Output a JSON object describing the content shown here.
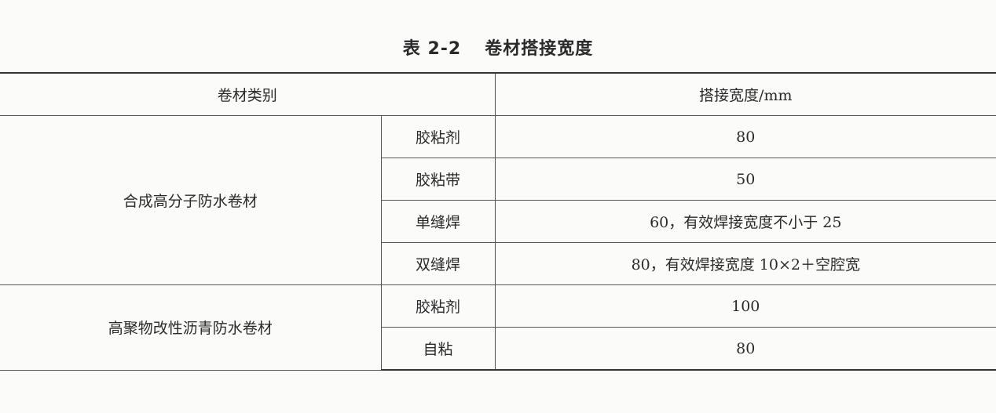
{
  "title": {
    "label": "表 2-2",
    "text": "卷材搭接宽度"
  },
  "table": {
    "headers": [
      "卷材类别",
      "搭接宽度/mm"
    ],
    "groups": [
      {
        "category": "合成高分子防水卷材",
        "rows": [
          {
            "method": "胶粘剂",
            "width": "80"
          },
          {
            "method": "胶粘带",
            "width": "50"
          },
          {
            "method": "单缝焊",
            "width": "60，有效焊接宽度不小于 25"
          },
          {
            "method": "双缝焊",
            "width": "80，有效焊接宽度 10×2＋空腔宽"
          }
        ]
      },
      {
        "category": "高聚物改性沥青防水卷材",
        "rows": [
          {
            "method": "胶粘剂",
            "width": "100"
          },
          {
            "method": "自粘",
            "width": "80"
          }
        ]
      }
    ]
  }
}
